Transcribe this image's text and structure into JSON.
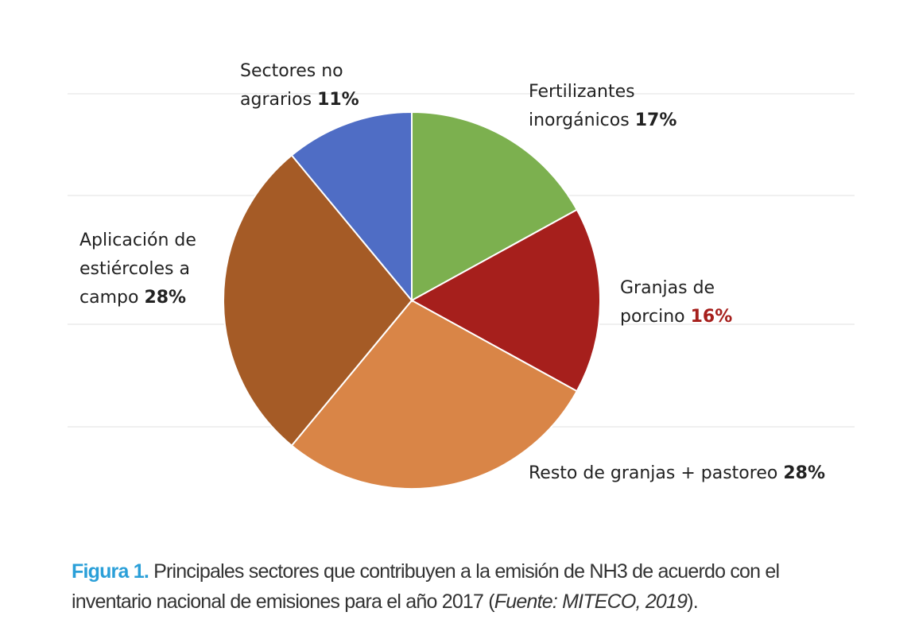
{
  "chart_data": {
    "type": "pie",
    "categories": [
      "Fertilizantes inorgánicos",
      "Granjas de porcino",
      "Resto de granjas + pastoreo",
      "Aplicación de estiércoles a campo",
      "Sectores no agrarios"
    ],
    "values": [
      17,
      16,
      28,
      28,
      11
    ],
    "value_labels": [
      "17%",
      "16%",
      "28%",
      "28%",
      "11%"
    ],
    "colors": [
      "#7cb04f",
      "#a61f1c",
      "#d98547",
      "#a55b26",
      "#4f6dc5"
    ],
    "value_label_colors": [
      "#222222",
      "#a61f1c",
      "#222222",
      "#222222",
      "#222222"
    ],
    "start_angle": -90,
    "direction": "clockwise"
  },
  "caption": {
    "label": "Figura 1.",
    "text": "Principales sectores que contribuyen a la emisión de NH3 de acuerdo con el inventario nacional de emisiones para el año 2017 (",
    "source": "Fuente: MITECO, 2019",
    "end": ")."
  }
}
